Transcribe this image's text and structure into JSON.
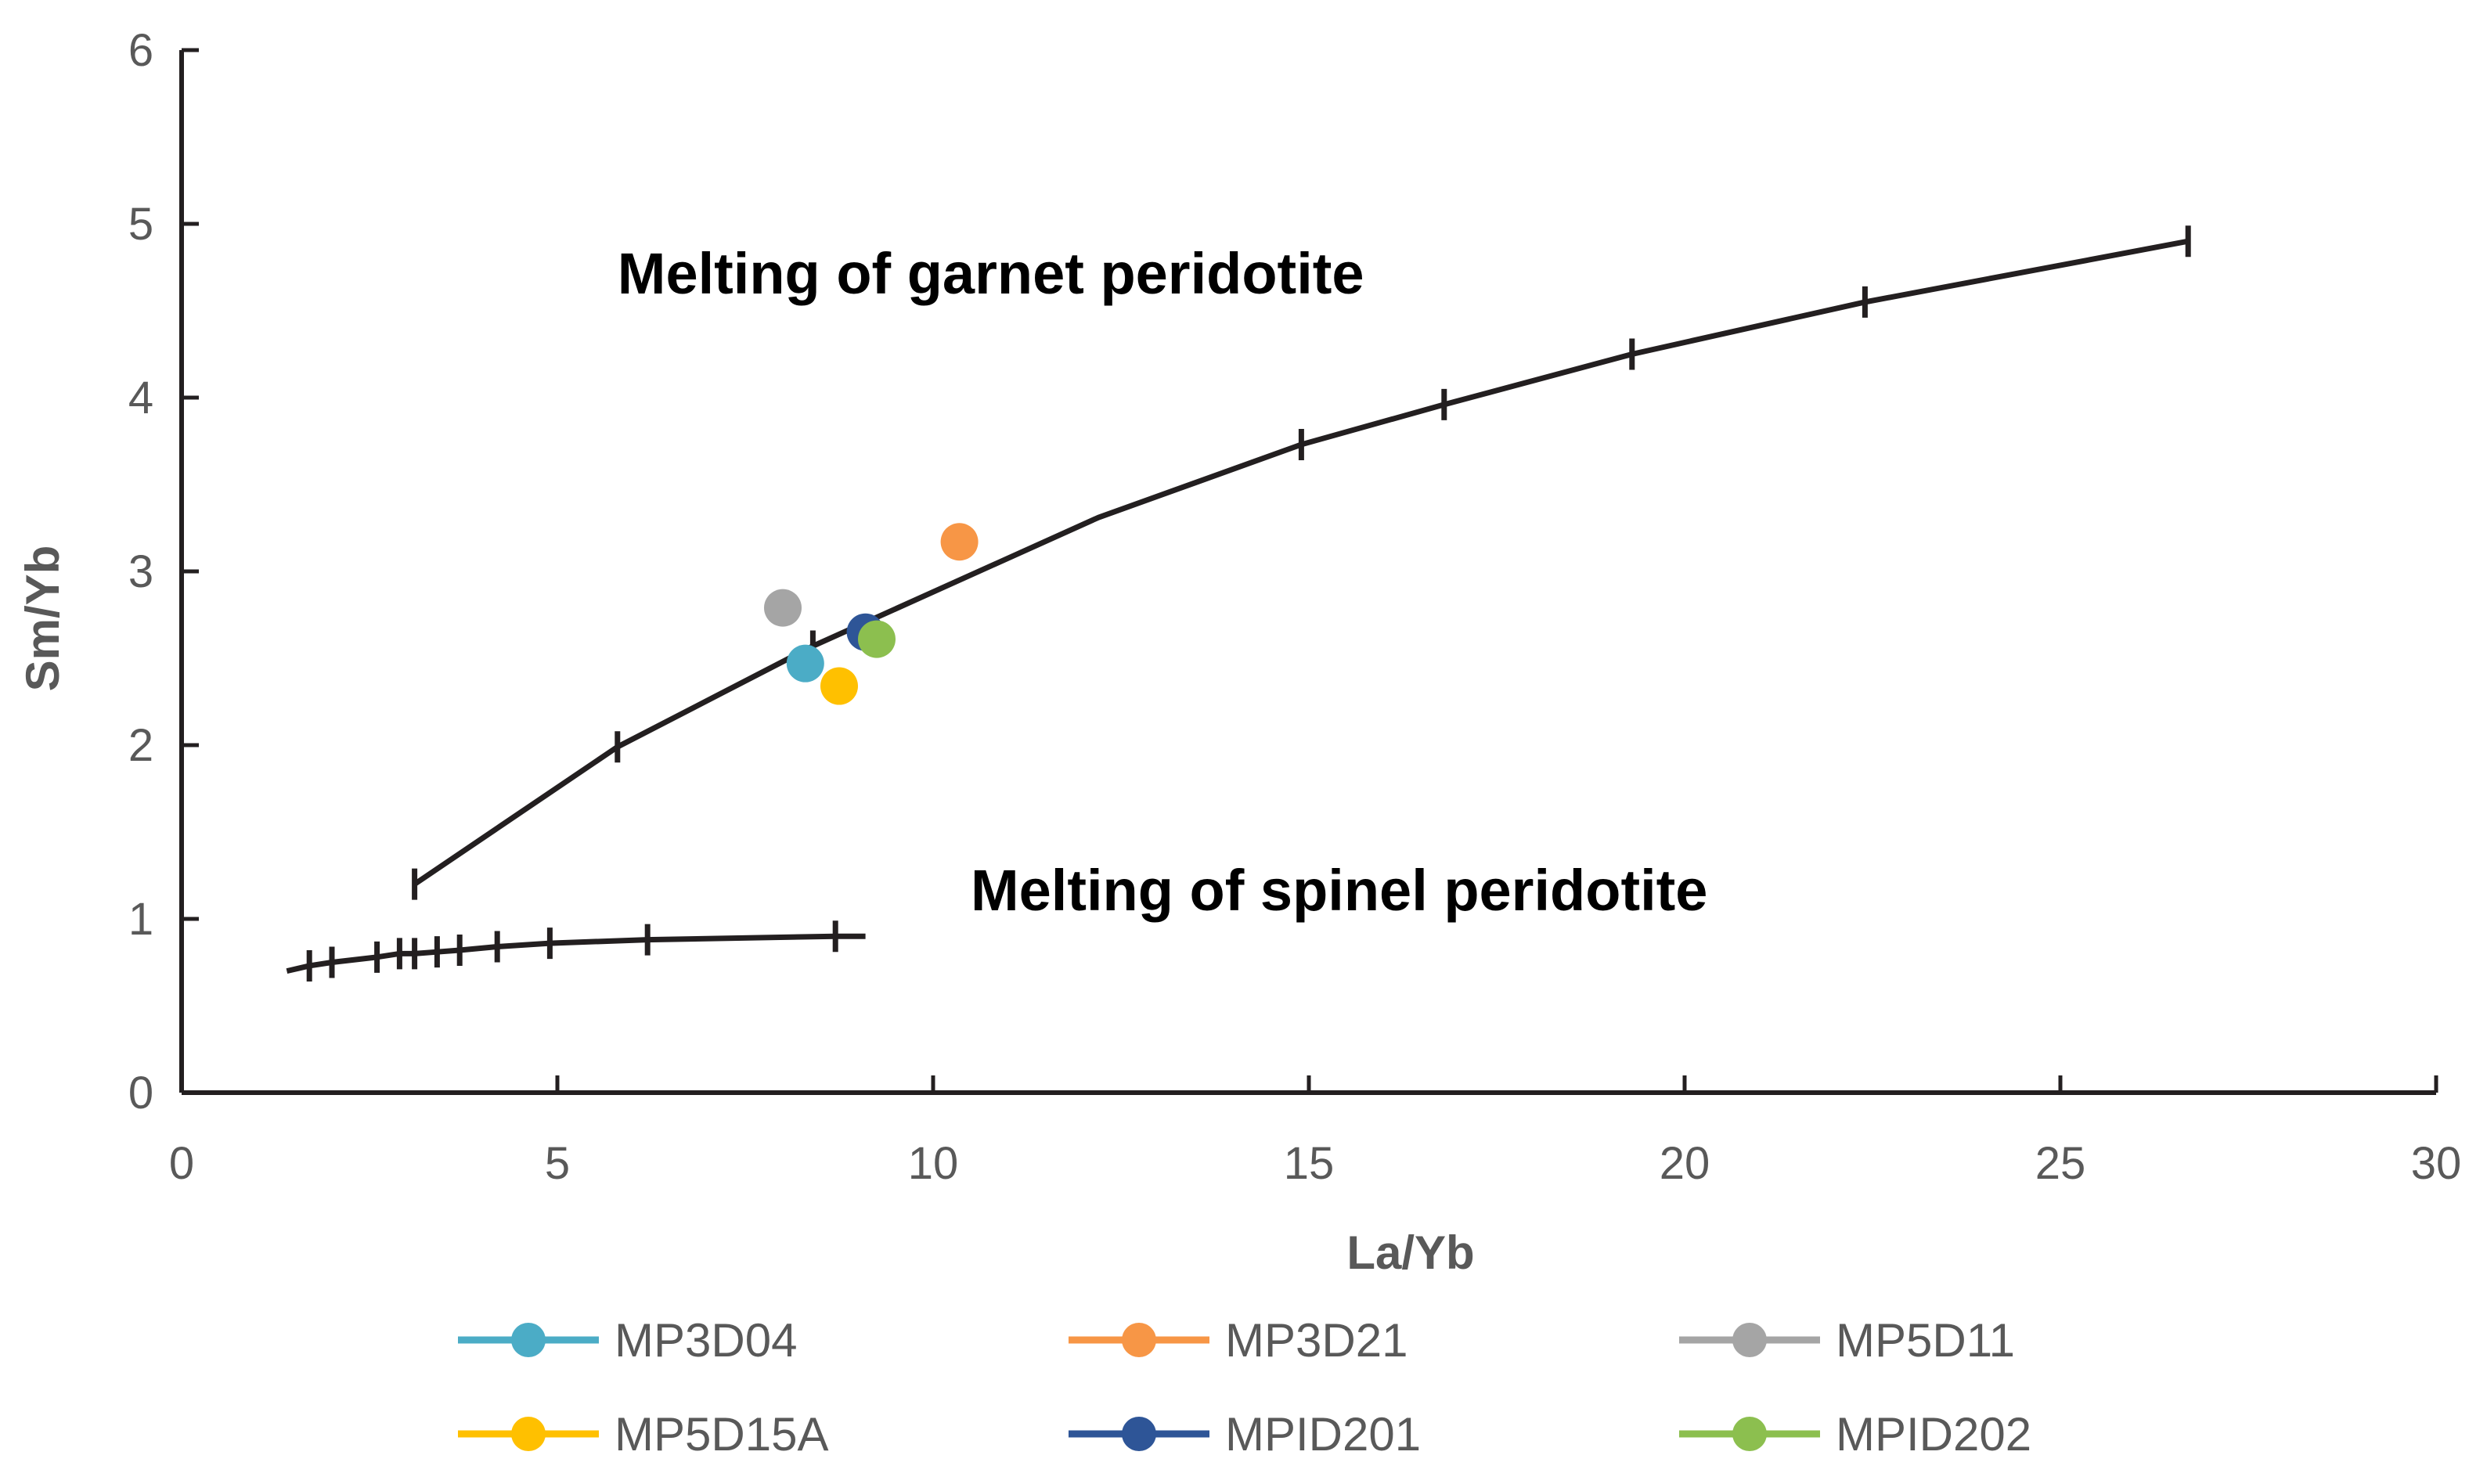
{
  "chart_data": {
    "type": "scatter",
    "title": "",
    "xlabel": "La/Yb",
    "ylabel": "Sm/Yb",
    "xlim": [
      0,
      30
    ],
    "ylim": [
      0,
      6
    ],
    "x_ticks": [
      0,
      5,
      10,
      15,
      20,
      25,
      30
    ],
    "y_ticks": [
      0,
      1,
      2,
      3,
      4,
      5,
      6
    ],
    "grid": false,
    "legend_position": "bottom",
    "curves": [
      {
        "name": "Melting of garnet peridotite",
        "color": "#231f20",
        "points": [
          [
            3.1,
            1.2
          ],
          [
            5.8,
            1.99
          ],
          [
            8.4,
            2.57
          ],
          [
            12.2,
            3.31
          ],
          [
            14.9,
            3.73
          ],
          [
            16.8,
            3.96
          ],
          [
            19.3,
            4.25
          ],
          [
            22.4,
            4.55
          ],
          [
            26.7,
            4.9
          ]
        ],
        "tick_marks": [
          [
            3.1,
            1.2
          ],
          [
            5.8,
            1.99
          ],
          [
            8.4,
            2.57
          ],
          [
            14.9,
            3.73
          ],
          [
            16.8,
            3.96
          ],
          [
            19.3,
            4.25
          ],
          [
            22.4,
            4.55
          ],
          [
            26.7,
            4.9
          ]
        ]
      },
      {
        "name": "Melting of spinel peridotite",
        "color": "#231f20",
        "points": [
          [
            1.4,
            0.7
          ],
          [
            1.7,
            0.73
          ],
          [
            2.0,
            0.75
          ],
          [
            2.6,
            0.78
          ],
          [
            2.9,
            0.8
          ],
          [
            3.1,
            0.8
          ],
          [
            3.4,
            0.81
          ],
          [
            3.7,
            0.82
          ],
          [
            4.2,
            0.84
          ],
          [
            4.9,
            0.86
          ],
          [
            6.2,
            0.88
          ],
          [
            8.7,
            0.9
          ],
          [
            9.1,
            0.9
          ]
        ],
        "tick_marks": [
          [
            1.7,
            0.73
          ],
          [
            2.0,
            0.75
          ],
          [
            2.6,
            0.78
          ],
          [
            2.9,
            0.8
          ],
          [
            3.1,
            0.8
          ],
          [
            3.4,
            0.81
          ],
          [
            3.7,
            0.82
          ],
          [
            4.2,
            0.84
          ],
          [
            4.9,
            0.86
          ],
          [
            6.2,
            0.88
          ],
          [
            8.7,
            0.9
          ]
        ]
      }
    ],
    "series": [
      {
        "name": "MP3D04",
        "color": "#4bacc6",
        "x": 8.3,
        "y": 2.47
      },
      {
        "name": "MP3D21",
        "color": "#f79646",
        "x": 10.35,
        "y": 3.17
      },
      {
        "name": "MP5D11",
        "color": "#a5a5a5",
        "x": 8.0,
        "y": 2.79
      },
      {
        "name": "MP5D15A",
        "color": "#ffc000",
        "x": 8.75,
        "y": 2.34
      },
      {
        "name": "MPID201",
        "color": "#2e5597",
        "x": 9.1,
        "y": 2.65
      },
      {
        "name": "MPID202",
        "color": "#8cbf4f",
        "x": 9.25,
        "y": 2.61
      }
    ],
    "annotations": [
      {
        "text": "Melting of garnet peridotite",
        "x": 5.8,
        "y": 4.6
      },
      {
        "text": "Melting of spinel peridotite",
        "x": 10.5,
        "y": 1.05
      }
    ]
  }
}
